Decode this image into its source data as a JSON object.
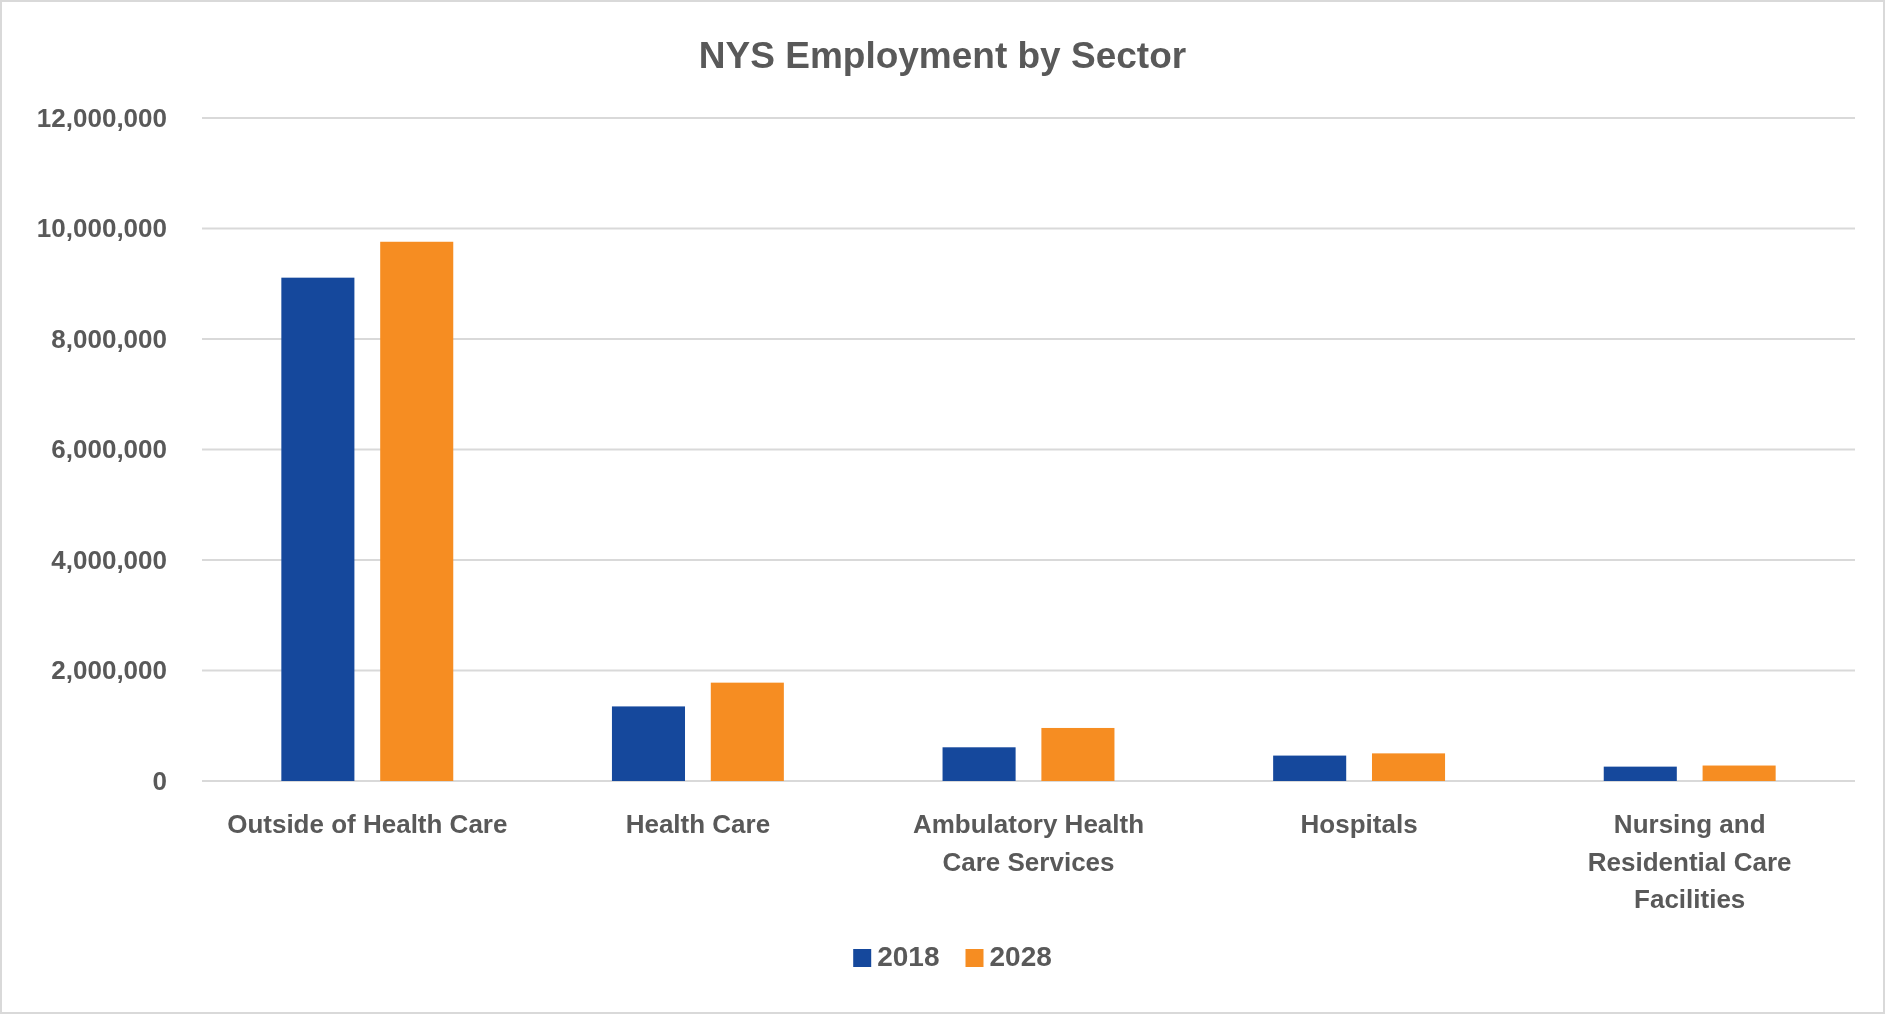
{
  "chart_data": {
    "type": "bar",
    "title": "NYS Employment by Sector",
    "categories": [
      "Outside of Health Care",
      "Health Care",
      "Ambulatory Health Care Services",
      "Hospitals",
      "Nursing and Residential Care Facilities"
    ],
    "series": [
      {
        "name": "2018",
        "color": "#15489c",
        "values": [
          9110000,
          1350000,
          610000,
          460000,
          260000
        ]
      },
      {
        "name": "2028",
        "color": "#f68d22",
        "values": [
          9760000,
          1780000,
          960000,
          500000,
          280000
        ]
      }
    ],
    "ylim": [
      0,
      12000000
    ],
    "yticks": [
      {
        "value": 0,
        "label": "0"
      },
      {
        "value": 2000000,
        "label": "2,000,000"
      },
      {
        "value": 4000000,
        "label": "4,000,000"
      },
      {
        "value": 6000000,
        "label": "6,000,000"
      },
      {
        "value": 8000000,
        "label": "8,000,000"
      },
      {
        "value": 10000000,
        "label": "10,000,000"
      },
      {
        "value": 12000000,
        "label": "12,000,000"
      }
    ],
    "grid": "y",
    "legend": "bottom"
  }
}
